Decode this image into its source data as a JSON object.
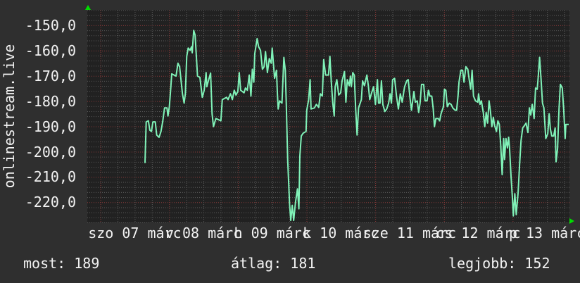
{
  "chart_data": {
    "type": "line",
    "title": "",
    "ylabel": "onlinestream.live",
    "xlabel": "",
    "ylim": [
      -228.0,
      -143.9
    ],
    "xlim": [
      "06 19:25",
      "13 19:50"
    ],
    "y_ticks": [
      -150,
      -160,
      -170,
      -180,
      -190,
      -200,
      -210,
      -220
    ],
    "y_tick_labels": [
      "-150,0",
      "-160,0",
      "-170,0",
      "-180,0",
      "-190,0",
      "-200,0",
      "-210,0",
      "-220,0"
    ],
    "x_tick_labels": [
      "szo 07 márc",
      "v 08 márc",
      "h 09 márc",
      "k 10 márc",
      "sze 11 márc",
      "cs 12 márc",
      "p 13 márc"
    ],
    "x_tick_days": [
      "07 00:00",
      "08 00:00",
      "09 00:00",
      "10 00:00",
      "11 00:00",
      "12 00:00",
      "13 00:00"
    ],
    "grid": true,
    "line_color": "#80f2b8",
    "major_grid_color": "#8a3a3a",
    "minor_grid_color": "#5a5a5a",
    "series": [
      {
        "points": [
          [
            "07 15:35",
            -204.5
          ],
          [
            "07 16:00",
            -188.2
          ],
          [
            "07 16:45",
            -187.8
          ],
          [
            "07 17:15",
            -191.5
          ],
          [
            "07 17:50",
            -192
          ],
          [
            "07 18:20",
            -188.2
          ],
          [
            "07 19:10",
            -188.2
          ],
          [
            "07 19:40",
            -193.4
          ],
          [
            "07 20:30",
            -194.3
          ],
          [
            "07 21:10",
            -192
          ],
          [
            "07 21:45",
            -188.2
          ],
          [
            "07 22:25",
            -182.7
          ],
          [
            "07 23:15",
            -182.7
          ],
          [
            "07 23:35",
            -185.9
          ],
          [
            "08 00:05",
            -182.2
          ],
          [
            "08 00:35",
            -174.8
          ],
          [
            "08 00:55",
            -169.2
          ],
          [
            "08 02:25",
            -170.1
          ],
          [
            "08 03:05",
            -165
          ],
          [
            "08 03:40",
            -166.4
          ],
          [
            "08 04:40",
            -177.1
          ],
          [
            "08 05:15",
            -180.8
          ],
          [
            "08 05:40",
            -177.1
          ],
          [
            "08 06:10",
            -162.3
          ],
          [
            "08 06:40",
            -159
          ],
          [
            "08 07:20",
            -159.9
          ],
          [
            "08 07:50",
            -158.5
          ],
          [
            "08 08:05",
            -160.9
          ],
          [
            "08 08:35",
            -152
          ],
          [
            "08 09:05",
            -153.9
          ],
          [
            "08 09:55",
            -170.1
          ],
          [
            "08 10:45",
            -170.6
          ],
          [
            "08 11:35",
            -178.5
          ],
          [
            "08 12:15",
            -175.7
          ],
          [
            "08 12:55",
            -168.7
          ],
          [
            "08 13:10",
            -174.3
          ],
          [
            "08 13:50",
            -171.5
          ],
          [
            "08 14:30",
            -168.9
          ],
          [
            "08 15:00",
            -185
          ],
          [
            "08 15:30",
            -190.1
          ],
          [
            "08 16:20",
            -186.9
          ],
          [
            "08 17:10",
            -187.3
          ],
          [
            "08 18:05",
            -187.8
          ],
          [
            "08 18:35",
            -179.4
          ],
          [
            "08 20:05",
            -178.5
          ],
          [
            "08 20:35",
            -179.4
          ],
          [
            "08 21:25",
            -177.1
          ],
          [
            "08 22:05",
            -179.4
          ],
          [
            "08 22:45",
            -175.7
          ],
          [
            "08 23:20",
            -177.6
          ],
          [
            "09 00:00",
            -176.2
          ],
          [
            "09 00:30",
            -168.7
          ],
          [
            "09 01:00",
            -175.7
          ],
          [
            "09 02:10",
            -176.7
          ],
          [
            "09 02:40",
            -174.8
          ],
          [
            "09 03:20",
            -175.7
          ],
          [
            "09 04:00",
            -169.7
          ],
          [
            "09 04:35",
            -178
          ],
          [
            "09 05:05",
            -167.4
          ],
          [
            "09 05:35",
            -172.5
          ],
          [
            "09 05:55",
            -161.3
          ],
          [
            "09 06:45",
            -155.3
          ],
          [
            "09 07:15",
            -158.5
          ],
          [
            "09 07:55",
            -159.9
          ],
          [
            "09 08:35",
            -167.4
          ],
          [
            "09 09:10",
            -166.4
          ],
          [
            "09 09:40",
            -160.4
          ],
          [
            "09 10:20",
            -168.7
          ],
          [
            "09 11:00",
            -163.2
          ],
          [
            "09 11:40",
            -165
          ],
          [
            "09 12:00",
            -159
          ],
          [
            "09 12:50",
            -171
          ],
          [
            "09 13:30",
            -167.8
          ],
          [
            "09 13:50",
            -177.1
          ],
          [
            "09 14:05",
            -183.1
          ],
          [
            "09 14:35",
            -179.9
          ],
          [
            "09 15:25",
            -180.8
          ],
          [
            "09 16:05",
            -162.7
          ],
          [
            "09 16:35",
            -167.8
          ],
          [
            "09 16:55",
            -180.8
          ],
          [
            "09 17:25",
            -203.1
          ],
          [
            "09 18:05",
            -220.8
          ],
          [
            "09 18:30",
            -227.2
          ],
          [
            "09 19:00",
            -221.2
          ],
          [
            "09 19:30",
            -227.2
          ],
          [
            "09 20:10",
            -219.8
          ],
          [
            "09 20:50",
            -214.7
          ],
          [
            "09 21:20",
            -222.6
          ],
          [
            "09 21:40",
            -201.7
          ],
          [
            "09 22:10",
            -193.8
          ],
          [
            "09 22:50",
            -192.7
          ],
          [
            "09 23:50",
            -192
          ],
          [
            "10 00:05",
            -183.6
          ],
          [
            "10 00:45",
            -179.4
          ],
          [
            "10 01:15",
            -171.5
          ],
          [
            "10 01:35",
            -183.1
          ],
          [
            "10 02:45",
            -182.7
          ],
          [
            "10 03:25",
            -181.3
          ],
          [
            "10 04:15",
            -182.5
          ],
          [
            "10 04:50",
            -177.1
          ],
          [
            "10 05:30",
            -178
          ],
          [
            "10 06:00",
            -163.6
          ],
          [
            "10 06:40",
            -169.7
          ],
          [
            "10 07:40",
            -169.7
          ],
          [
            "10 08:10",
            -162.3
          ],
          [
            "10 08:40",
            -172.5
          ],
          [
            "10 09:10",
            -180.8
          ],
          [
            "10 09:40",
            -185.9
          ],
          [
            "10 10:00",
            -174.3
          ],
          [
            "10 10:35",
            -171.5
          ],
          [
            "10 11:15",
            -177.6
          ],
          [
            "10 11:55",
            -176.7
          ],
          [
            "10 12:25",
            -172
          ],
          [
            "10 13:15",
            -168.3
          ],
          [
            "10 13:45",
            -180.4
          ],
          [
            "10 14:15",
            -171.5
          ],
          [
            "10 14:55",
            -173.9
          ],
          [
            "10 15:20",
            -170.1
          ],
          [
            "10 15:40",
            -174.3
          ],
          [
            "10 16:10",
            -168.7
          ],
          [
            "10 16:40",
            -169.7
          ],
          [
            "10 17:10",
            -183.1
          ],
          [
            "10 17:40",
            -193.4
          ],
          [
            "10 18:10",
            -182.7
          ],
          [
            "10 19:10",
            -179.4
          ],
          [
            "10 19:35",
            -172
          ],
          [
            "10 20:15",
            -173.9
          ],
          [
            "10 21:05",
            -169.7
          ],
          [
            "10 21:35",
            -173.9
          ],
          [
            "10 22:05",
            -179.4
          ],
          [
            "10 22:45",
            -176.7
          ],
          [
            "10 23:25",
            -174.3
          ],
          [
            "11 00:05",
            -181.3
          ],
          [
            "11 00:45",
            -171.5
          ],
          [
            "11 01:10",
            -180.8
          ],
          [
            "11 01:40",
            -180.8
          ],
          [
            "11 02:10",
            -172
          ],
          [
            "11 02:40",
            -181.3
          ],
          [
            "11 03:20",
            -184.1
          ],
          [
            "11 04:00",
            -183.1
          ],
          [
            "11 04:40",
            -180.8
          ],
          [
            "11 05:10",
            -177.1
          ],
          [
            "11 05:40",
            -180.8
          ],
          [
            "11 06:05",
            -171.5
          ],
          [
            "11 06:45",
            -171
          ],
          [
            "11 07:25",
            -178
          ],
          [
            "11 08:05",
            -183.1
          ],
          [
            "11 08:45",
            -177.1
          ],
          [
            "11 09:25",
            -180.4
          ],
          [
            "11 10:15",
            -174.3
          ],
          [
            "11 11:00",
            -172
          ],
          [
            "11 11:30",
            -171.5
          ],
          [
            "11 12:10",
            -179
          ],
          [
            "11 12:40",
            -183.6
          ],
          [
            "11 13:30",
            -176.2
          ],
          [
            "11 14:00",
            -180.4
          ],
          [
            "11 14:40",
            -179.9
          ],
          [
            "11 15:10",
            -184.5
          ],
          [
            "11 15:40",
            -180.8
          ],
          [
            "11 16:10",
            -173.4
          ],
          [
            "11 16:55",
            -173.4
          ],
          [
            "11 17:25",
            -179.9
          ],
          [
            "11 18:05",
            -179.9
          ],
          [
            "11 18:35",
            -175.7
          ],
          [
            "11 19:05",
            -178
          ],
          [
            "11 19:45",
            -178
          ],
          [
            "11 20:15",
            -183.1
          ],
          [
            "11 20:40",
            -190.1
          ],
          [
            "11 21:10",
            -186.9
          ],
          [
            "11 22:00",
            -186.9
          ],
          [
            "11 22:30",
            -187.8
          ],
          [
            "11 23:00",
            -185
          ],
          [
            "11 23:50",
            -182.2
          ],
          [
            "12 00:10",
            -175.3
          ],
          [
            "12 00:40",
            -175.7
          ],
          [
            "12 01:10",
            -182.2
          ],
          [
            "12 01:50",
            -180.8
          ],
          [
            "12 02:30",
            -181.3
          ],
          [
            "12 03:05",
            -182.7
          ],
          [
            "12 03:55",
            -183.6
          ],
          [
            "12 04:25",
            -183.6
          ],
          [
            "12 04:55",
            -178
          ],
          [
            "12 05:15",
            -172.5
          ],
          [
            "12 05:55",
            -167.8
          ],
          [
            "12 06:30",
            -167.8
          ],
          [
            "12 07:00",
            -172.5
          ],
          [
            "12 07:40",
            -166.4
          ],
          [
            "12 08:20",
            -167.4
          ],
          [
            "12 08:50",
            -171.5
          ],
          [
            "12 09:20",
            -175.3
          ],
          [
            "12 09:50",
            -167.8
          ],
          [
            "12 10:20",
            -178
          ],
          [
            "12 11:00",
            -179.9
          ],
          [
            "12 11:50",
            -180.4
          ],
          [
            "12 12:05",
            -177.1
          ],
          [
            "12 12:35",
            -181.3
          ],
          [
            "12 13:05",
            -179.9
          ],
          [
            "12 13:45",
            -184.5
          ],
          [
            "12 14:15",
            -190.1
          ],
          [
            "12 14:45",
            -184.5
          ],
          [
            "12 15:15",
            -188.7
          ],
          [
            "12 15:45",
            -179.9
          ],
          [
            "12 16:15",
            -184.1
          ],
          [
            "12 16:45",
            -190.1
          ],
          [
            "12 17:15",
            -186.4
          ],
          [
            "12 17:40",
            -189.6
          ],
          [
            "12 18:20",
            -192
          ],
          [
            "12 18:50",
            -187.8
          ],
          [
            "12 19:20",
            -189.2
          ],
          [
            "12 19:50",
            -197.5
          ],
          [
            "12 20:20",
            -209.1
          ],
          [
            "12 20:50",
            -194.8
          ],
          [
            "12 21:10",
            -203.1
          ],
          [
            "12 21:40",
            -194.8
          ],
          [
            "12 22:10",
            -198.5
          ],
          [
            "12 22:35",
            -194.3
          ],
          [
            "12 22:55",
            -198.5
          ],
          [
            "12 23:25",
            -209.6
          ],
          [
            "12 23:55",
            -218.4
          ],
          [
            "13 00:15",
            -225.4
          ],
          [
            "13 00:45",
            -216.6
          ],
          [
            "13 01:15",
            -224.9
          ],
          [
            "13 01:55",
            -216.1
          ],
          [
            "13 02:25",
            -205
          ],
          [
            "13 02:55",
            -195.7
          ],
          [
            "13 03:30",
            -190.6
          ],
          [
            "13 04:10",
            -189.6
          ],
          [
            "13 04:40",
            -188.7
          ],
          [
            "13 05:20",
            -192.4
          ],
          [
            "13 05:50",
            -182.7
          ],
          [
            "13 06:20",
            -185.5
          ],
          [
            "13 06:50",
            -181.3
          ],
          [
            "13 07:30",
            -186.9
          ],
          [
            "13 08:00",
            -174.8
          ],
          [
            "13 08:35",
            -175.3
          ],
          [
            "13 08:55",
            -170.6
          ],
          [
            "13 09:25",
            -162.7
          ],
          [
            "13 09:55",
            -171.5
          ],
          [
            "13 10:25",
            -180.8
          ],
          [
            "13 10:55",
            -182.7
          ],
          [
            "13 11:35",
            -194.8
          ],
          [
            "13 12:15",
            -192.9
          ],
          [
            "13 12:45",
            -185
          ],
          [
            "13 13:10",
            -191
          ],
          [
            "13 13:40",
            -193.8
          ],
          [
            "13 14:20",
            -193.8
          ],
          [
            "13 14:50",
            -190.6
          ],
          [
            "13 15:10",
            -204
          ],
          [
            "13 15:40",
            -198.9
          ],
          [
            "13 16:10",
            -183.6
          ],
          [
            "13 16:40",
            -173.4
          ],
          [
            "13 17:20",
            -174.8
          ],
          [
            "13 17:50",
            -183.6
          ],
          [
            "13 18:20",
            -194.8
          ],
          [
            "13 18:35",
            -189.2
          ],
          [
            "13 19:35",
            -189.2
          ]
        ]
      }
    ]
  },
  "footer": {
    "current": "most: 189",
    "average": "átlag: 181",
    "best": "legjobb: 152"
  }
}
